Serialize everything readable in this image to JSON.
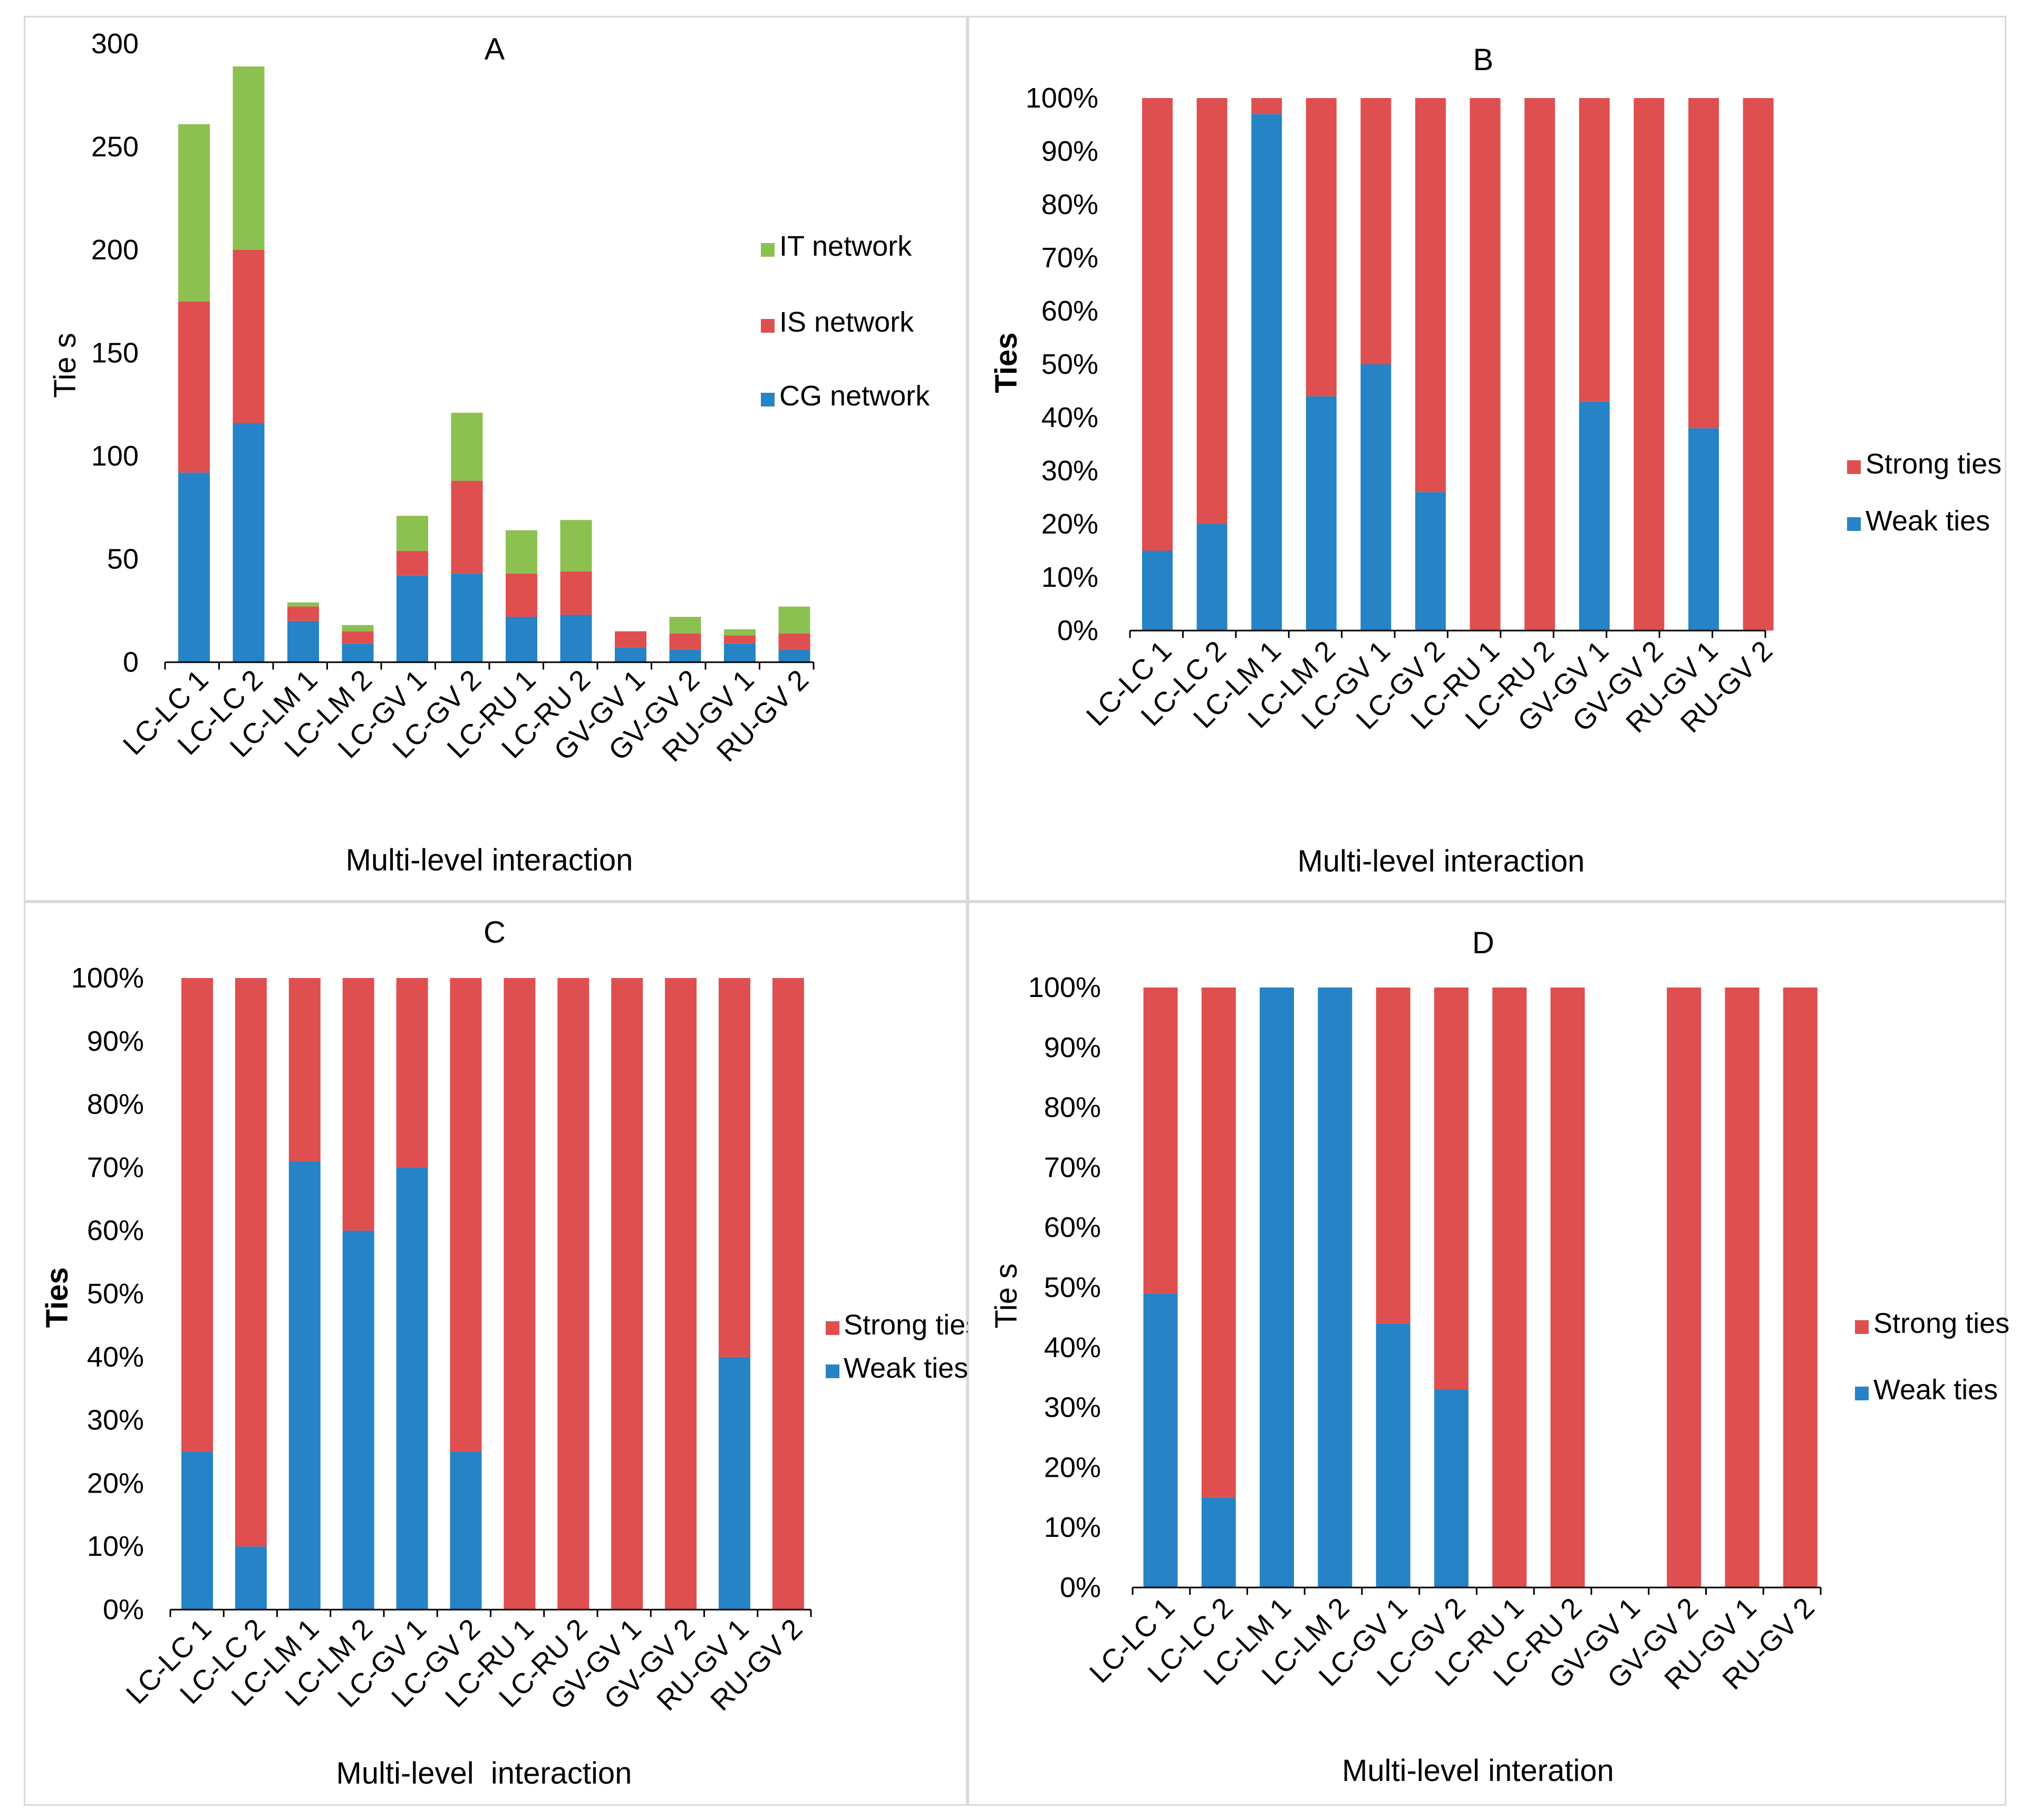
{
  "colors": {
    "cg": "#2683C6",
    "is": "#DF4F4F",
    "it": "#8CC152",
    "weak": "#2683C6",
    "strong": "#DF4F4F",
    "axis": "#000000"
  },
  "chart_data": [
    {
      "id": "A",
      "type": "bar",
      "stacked": true,
      "title": "A",
      "xlabel": "Multi-level interaction",
      "ylabel": "Tie s",
      "ylim": [
        0,
        300
      ],
      "yticks": [
        "0",
        "50",
        "100",
        "150",
        "200",
        "250",
        "300"
      ],
      "categories": [
        "LC-LC 1",
        "LC-LC 2",
        "LC-LM 1",
        "LC-LM 2",
        "LC-GV 1",
        "LC-GV 2",
        "LC-RU 1",
        "LC-RU 2",
        "GV-GV 1",
        "GV-GV 2",
        "RU-GV 1",
        "RU-GV 2"
      ],
      "series": [
        {
          "name": "CG network",
          "color": "#2683C6",
          "values": [
            92,
            116,
            20,
            9,
            42,
            43,
            22,
            23,
            7,
            6,
            9,
            6
          ]
        },
        {
          "name": "IS network",
          "color": "#DF4F4F",
          "values": [
            83,
            84,
            7,
            6,
            12,
            45,
            21,
            21,
            8,
            8,
            4,
            8
          ]
        },
        {
          "name": "IT network",
          "color": "#8CC152",
          "values": [
            86,
            89,
            2,
            3,
            17,
            33,
            21,
            25,
            0,
            8,
            3,
            13
          ]
        }
      ],
      "legend": [
        "IT network",
        "IS network",
        "CG network"
      ],
      "legend_position": "right"
    },
    {
      "id": "B",
      "type": "bar",
      "stacked": true,
      "title": "B",
      "xlabel": "Multi-level interaction",
      "ylabel": "Ties",
      "ylim": [
        0,
        100
      ],
      "yticks": [
        "0%",
        "10%",
        "20%",
        "30%",
        "40%",
        "50%",
        "60%",
        "70%",
        "80%",
        "90%",
        "100%"
      ],
      "categories": [
        "LC-LC 1",
        "LC-LC 2",
        "LC-LM 1",
        "LC-LM 2",
        "LC-GV 1",
        "LC-GV 2",
        "LC-RU 1",
        "LC-RU 2",
        "GV-GV 1",
        "GV-GV 2",
        "RU-GV 1",
        "RU-GV 2"
      ],
      "series": [
        {
          "name": "Weak ties",
          "color": "#2683C6",
          "values": [
            15,
            20,
            97,
            44,
            50,
            26,
            0,
            0,
            43,
            0,
            38,
            0
          ]
        },
        {
          "name": "Strong ties",
          "color": "#DF4F4F",
          "values": [
            85,
            80,
            3,
            56,
            50,
            74,
            100,
            100,
            57,
            100,
            62,
            100
          ]
        }
      ],
      "legend": [
        "Strong ties",
        "Weak ties"
      ],
      "legend_position": "right"
    },
    {
      "id": "C",
      "type": "bar",
      "stacked": true,
      "title": "C",
      "xlabel": "Multi-level  interaction",
      "ylabel": "Ties",
      "ylim": [
        0,
        100
      ],
      "yticks": [
        "0%",
        "10%",
        "20%",
        "30%",
        "40%",
        "50%",
        "60%",
        "70%",
        "80%",
        "90%",
        "100%"
      ],
      "categories": [
        "LC-LC 1",
        "LC-LC 2",
        "LC-LM 1",
        "LC-LM 2",
        "LC-GV 1",
        "LC-GV 2",
        "LC-RU 1",
        "LC-RU 2",
        "GV-GV 1",
        "GV-GV 2",
        "RU-GV 1",
        "RU-GV 2"
      ],
      "series": [
        {
          "name": "Weak ties",
          "color": "#2683C6",
          "values": [
            25,
            10,
            71,
            60,
            70,
            25,
            0,
            0,
            0,
            0,
            40,
            0
          ]
        },
        {
          "name": "Strong ties",
          "color": "#DF4F4F",
          "values": [
            75,
            90,
            29,
            40,
            30,
            75,
            100,
            100,
            100,
            100,
            60,
            100
          ]
        }
      ],
      "legend": [
        "Strong ties",
        "Weak ties"
      ],
      "legend_position": "right"
    },
    {
      "id": "D",
      "type": "bar",
      "stacked": true,
      "title": "D",
      "xlabel": "Multi-level interation",
      "ylabel": "Tie s",
      "ylim": [
        0,
        100
      ],
      "yticks": [
        "0%",
        "10%",
        "20%",
        "30%",
        "40%",
        "50%",
        "60%",
        "70%",
        "80%",
        "90%",
        "100%"
      ],
      "categories": [
        "LC-LC 1",
        "LC-LC 2",
        "LC-LM 1",
        "LC-LM 2",
        "LC-GV 1",
        "LC-GV 2",
        "LC-RU 1",
        "LC-RU 2",
        "GV-GV 1",
        "GV-GV 2",
        "RU-GV 1",
        "RU-GV 2"
      ],
      "series": [
        {
          "name": "Weak ties",
          "color": "#2683C6",
          "values": [
            49,
            15,
            100,
            100,
            44,
            33,
            0,
            0,
            0,
            0,
            0,
            0
          ]
        },
        {
          "name": "Strong ties",
          "color": "#DF4F4F",
          "values": [
            51,
            85,
            0,
            0,
            56,
            67,
            100,
            100,
            0,
            100,
            100,
            100
          ]
        }
      ],
      "legend": [
        "Strong ties",
        "Weak ties"
      ],
      "legend_position": "right"
    }
  ]
}
